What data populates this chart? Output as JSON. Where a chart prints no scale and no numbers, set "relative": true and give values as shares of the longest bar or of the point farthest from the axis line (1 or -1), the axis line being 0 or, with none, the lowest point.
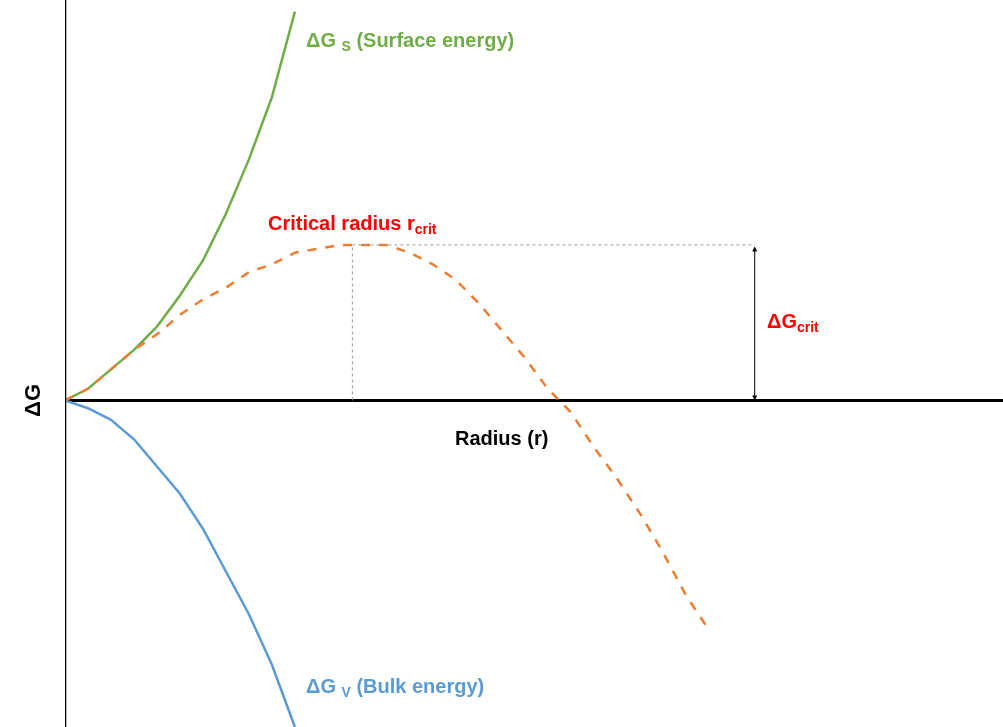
{
  "chart_data": {
    "type": "line",
    "relative": true,
    "xlabel": "Radius (r)",
    "ylabel": "ΔG",
    "tick_labels": false,
    "grid": false,
    "legend": false,
    "categories": [
      null,
      null,
      null,
      null,
      null,
      null,
      null,
      null,
      null,
      null,
      null,
      null,
      null,
      null,
      null,
      null,
      null,
      null,
      null,
      null,
      null,
      null,
      null,
      null,
      null,
      null,
      null,
      null,
      null,
      null,
      null,
      null,
      null,
      null,
      null,
      null,
      null,
      null,
      null,
      null,
      null
    ],
    "series": [
      {
        "name": "ΔG $_{S}$ (Surface energy)",
        "color": "#70ad47",
        "line_style": "solid",
        "values": [
          0,
          0.03,
          0.08,
          0.13,
          0.19,
          0.27,
          0.36,
          0.48,
          0.62,
          0.78,
          1,
          null,
          null,
          null,
          null,
          null,
          null,
          null,
          null,
          null,
          null,
          null,
          null,
          null,
          null,
          null,
          null,
          null,
          null,
          null,
          null,
          null,
          null,
          null,
          null,
          null,
          null,
          null,
          null,
          null,
          null
        ]
      },
      {
        "name": "ΔG $_{V}$ (Bulk energy)",
        "color": "#5b9bd5",
        "line_style": "solid",
        "values": [
          0,
          -0.02,
          -0.05,
          -0.1,
          -0.17,
          -0.24,
          -0.33,
          -0.44,
          -0.55,
          -0.68,
          -0.84,
          null,
          null,
          null,
          null,
          null,
          null,
          null,
          null,
          null,
          null,
          null,
          null,
          null,
          null,
          null,
          null,
          null,
          null,
          null,
          null,
          null,
          null,
          null,
          null,
          null,
          null,
          null,
          null,
          null,
          null
        ]
      },
      {
        "color": "#ed7d31",
        "line_style": "dashed",
        "values": [
          0,
          0.03,
          0.08,
          0.13,
          0.17,
          0.22,
          0.26,
          0.29,
          0.33,
          0.35,
          0.38,
          0.39,
          0.4,
          0.4,
          0.4,
          0.38,
          0.35,
          0.31,
          0.25,
          0.18,
          0.11,
          0.03,
          -0.03,
          -0.12,
          -0.2,
          -0.29,
          -0.39,
          -0.5,
          -0.59,
          null,
          null,
          null,
          null,
          null,
          null,
          null,
          null,
          null,
          null,
          null,
          null
        ]
      }
    ],
    "annotations": [
      "Critical radius r$_{crit}$",
      "ΔG$_{crit}$"
    ]
  }
}
